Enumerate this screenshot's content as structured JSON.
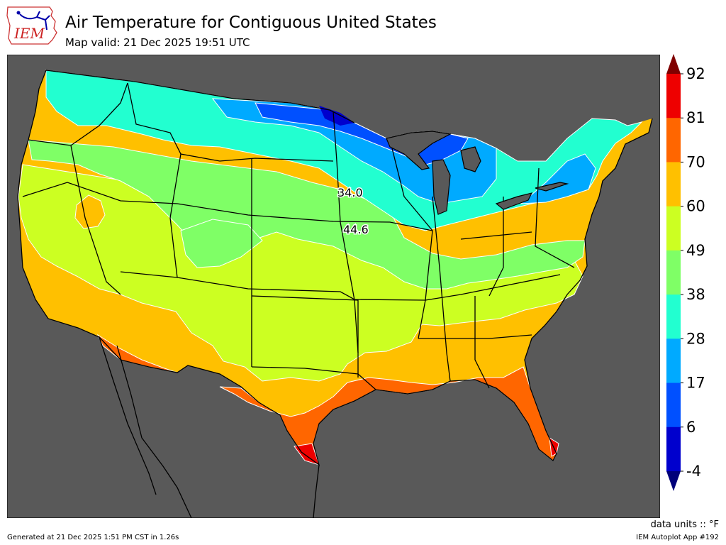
{
  "header": {
    "logo_text": "IEM",
    "title": "Air Temperature for Contiguous United States",
    "subtitle": "Map valid: 21 Dec 2025 19:51 UTC"
  },
  "map": {
    "background_color": "#595959",
    "point_labels": [
      {
        "text": "34.0",
        "location": "eastern Nebraska / Iowa border"
      },
      {
        "text": "44.6",
        "location": "southeastern Nebraska / Kansas border"
      }
    ]
  },
  "colorbar": {
    "levels": [
      "-4",
      "6",
      "17",
      "28",
      "38",
      "49",
      "60",
      "70",
      "81",
      "92"
    ],
    "colors": [
      "#0000cd",
      "#0050ff",
      "#00aaff",
      "#22ffd0",
      "#7fff66",
      "#ccff22",
      "#ffc000",
      "#ff6600",
      "#ee0000"
    ],
    "under_color": "#00007a",
    "over_color": "#800000"
  },
  "footer": {
    "units": "data units :: °F",
    "generated": "Generated at 21 Dec 2025 1:51 PM CST in 1.26s",
    "app": "IEM Autoplot App #192"
  }
}
